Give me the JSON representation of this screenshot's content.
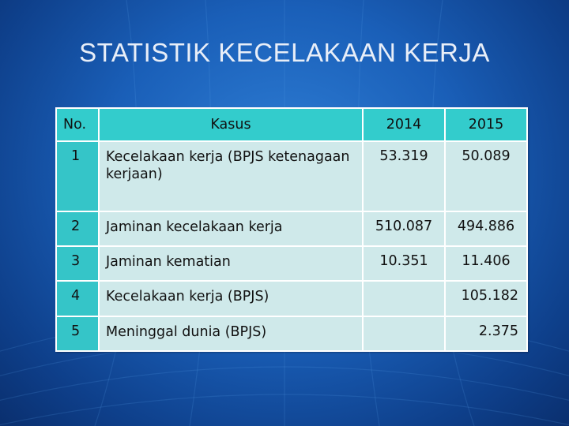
{
  "title": "STATISTIK KECELAKAAN KERJA",
  "table": {
    "headers": {
      "no": "No.",
      "kasus": "Kasus",
      "y2014": "2014",
      "y2015": "2015"
    },
    "rows": [
      {
        "no": "1",
        "kasus": "Kecelakaan kerja (BPJS ketenagaan  kerjaan)",
        "y2014": "53.319",
        "y2015": "50.089"
      },
      {
        "no": "2",
        "kasus": "Jaminan kecelakaan kerja",
        "y2014": "510.087",
        "y2015": "494.886"
      },
      {
        "no": "3",
        "kasus": "Jaminan kematian",
        "y2014": "10.351",
        "y2015": "11.406"
      },
      {
        "no": "4",
        "kasus": "Kecelakaan kerja (BPJS)",
        "y2014": "",
        "y2015": "105.182"
      },
      {
        "no": "5",
        "kasus": "Meninggal dunia (BPJS)",
        "y2014": "",
        "y2015": "2.375"
      }
    ]
  },
  "colors": {
    "background": "#1a5fb8",
    "header": "#33cccc",
    "number_column": "#35c5c8",
    "cell": "#cfe9ea"
  }
}
